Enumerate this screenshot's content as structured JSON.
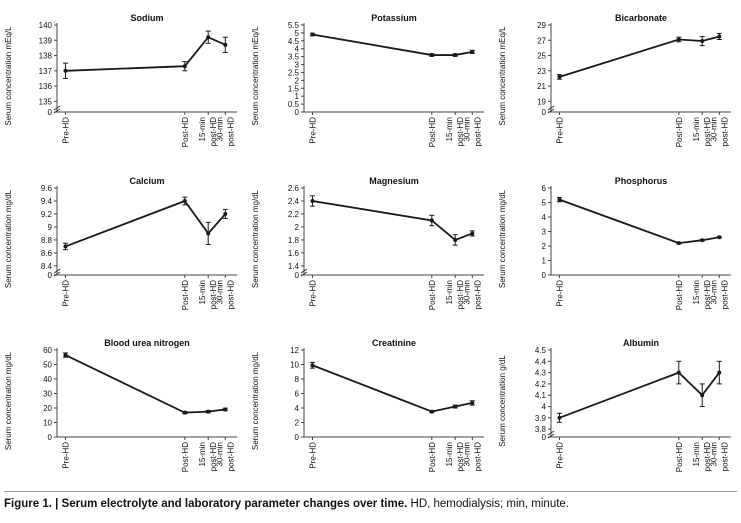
{
  "chart_data": [
    {
      "type": "line",
      "title": "Sodium",
      "ylabel": "Serum concentration mEq/L",
      "categories": [
        "Pre-HD",
        "Post-HD",
        "15-min post-HD",
        "30-min post-HD"
      ],
      "yticks": [
        0,
        135,
        136,
        137,
        138,
        139,
        140
      ],
      "ylim": [
        134.3,
        140
      ],
      "axis_break": true,
      "values": [
        137.0,
        137.3,
        139.2,
        138.7
      ],
      "errors": [
        0.5,
        0.3,
        0.4,
        0.5
      ]
    },
    {
      "type": "line",
      "title": "Potassium",
      "ylabel": "Serum concentration mEq/L",
      "categories": [
        "Pre-HD",
        "Post-HD",
        "15-min post-HD",
        "30-min post-HD"
      ],
      "yticks": [
        0,
        0.5,
        1,
        1.5,
        2,
        2.5,
        3,
        3.5,
        4,
        4.5,
        5,
        5.5
      ],
      "ylim": [
        0,
        5.5
      ],
      "axis_break": false,
      "values": [
        4.9,
        3.6,
        3.6,
        3.8
      ],
      "errors": [
        0.08,
        0.08,
        0.08,
        0.1
      ]
    },
    {
      "type": "line",
      "title": "Bicarbonate",
      "ylabel": "Serum concentration mEq/L",
      "categories": [
        "Pre-HD",
        "Post-HD",
        "15-min post-HD",
        "30-min post-HD"
      ],
      "yticks": [
        0,
        19,
        21,
        23,
        25,
        27,
        29
      ],
      "ylim": [
        17.6,
        29
      ],
      "axis_break": true,
      "values": [
        22.2,
        27.1,
        26.9,
        27.5
      ],
      "errors": [
        0.3,
        0.3,
        0.6,
        0.4
      ]
    },
    {
      "type": "line",
      "title": "Calcium",
      "ylabel": "Serum concentration mg/dL",
      "categories": [
        "Pre-HD",
        "Post-HD",
        "15-min post-HD",
        "30-min post-HD"
      ],
      "yticks": [
        0,
        8.4,
        8.6,
        8.8,
        9,
        9.2,
        9.4,
        9.6
      ],
      "ylim": [
        8.26,
        9.6
      ],
      "axis_break": true,
      "values": [
        8.7,
        9.4,
        8.9,
        9.2
      ],
      "errors": [
        0.05,
        0.06,
        0.17,
        0.07
      ]
    },
    {
      "type": "line",
      "title": "Magnesium",
      "ylabel": "Serum concentration mg/dL",
      "categories": [
        "Pre-HD",
        "Post-HD",
        "15-min post-HD",
        "30-min post-HD"
      ],
      "yticks": [
        0,
        1.4,
        1.6,
        1.8,
        2,
        2.2,
        2.4,
        2.6
      ],
      "ylim": [
        1.26,
        2.6
      ],
      "axis_break": true,
      "values": [
        2.4,
        2.1,
        1.8,
        1.9
      ],
      "errors": [
        0.08,
        0.08,
        0.08,
        0.04
      ]
    },
    {
      "type": "line",
      "title": "Phosphorus",
      "ylabel": "Serum concentration mg/dL",
      "categories": [
        "Pre-HD",
        "Post-HD",
        "15-min post-HD",
        "30-min post-HD"
      ],
      "yticks": [
        0,
        1,
        2,
        3,
        4,
        5,
        6
      ],
      "ylim": [
        0,
        6
      ],
      "axis_break": false,
      "values": [
        5.2,
        2.2,
        2.4,
        2.6
      ],
      "errors": [
        0.15,
        0.05,
        0.05,
        0.05
      ]
    },
    {
      "type": "line",
      "title": "Blood urea nitrogen",
      "ylabel": "Serum concentration mg/dL",
      "categories": [
        "Pre-HD",
        "Post-HD",
        "15-min post-HD",
        "30-min post-HD"
      ],
      "yticks": [
        0,
        10,
        20,
        30,
        40,
        50,
        60
      ],
      "ylim": [
        0,
        60
      ],
      "axis_break": false,
      "values": [
        56.5,
        16.8,
        17.5,
        19.0
      ],
      "errors": [
        1.5,
        0.8,
        0.8,
        0.9
      ]
    },
    {
      "type": "line",
      "title": "Creatinine",
      "ylabel": "Serum concentration mg/dL",
      "categories": [
        "Pre-HD",
        "Post-HD",
        "15-min post-HD",
        "30-min post-HD"
      ],
      "yticks": [
        0,
        2,
        4,
        6,
        8,
        10,
        12
      ],
      "ylim": [
        0,
        12
      ],
      "axis_break": false,
      "values": [
        9.9,
        3.5,
        4.2,
        4.7
      ],
      "errors": [
        0.4,
        0.15,
        0.2,
        0.3
      ]
    },
    {
      "type": "line",
      "title": "Albumin",
      "ylabel": "Serum concentration g/dL",
      "categories": [
        "Pre-HD",
        "Post-HD",
        "15-min post-HD",
        "30-min post-HD"
      ],
      "yticks": [
        0,
        3.8,
        3.9,
        4,
        4.1,
        4.2,
        4.3,
        4.4,
        4.5
      ],
      "ylim": [
        3.73,
        4.5
      ],
      "axis_break": true,
      "values": [
        3.9,
        4.3,
        4.1,
        4.3
      ],
      "errors": [
        0.04,
        0.1,
        0.1,
        0.1
      ]
    }
  ],
  "caption": {
    "label": "Figure 1. | Serum electrolyte and laboratory parameter changes over time.",
    "text": " HD, hemodialysis; min, minute."
  }
}
